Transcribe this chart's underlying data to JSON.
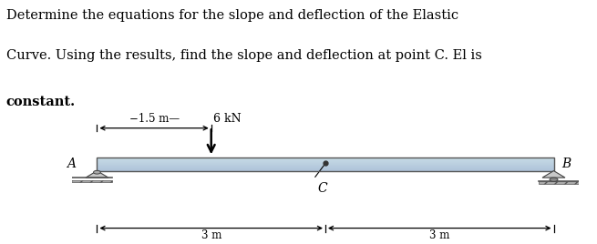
{
  "text_line1": "Determine the equations for the slope and deflection of the Elastic",
  "text_line2": "Curve. Using the results, find the slope and deflection at point C. El is",
  "text_line3": "constant.",
  "load_label": "6 kN",
  "dim_label_15": "−1.5 m—",
  "dim_label_3m_left": "3 m",
  "dim_label_3m_right": "3 m",
  "label_A": "A",
  "label_B": "B",
  "label_C": "C",
  "bg_color": "#ffffff",
  "fig_width": 6.55,
  "fig_height": 2.68,
  "dpi": 100
}
